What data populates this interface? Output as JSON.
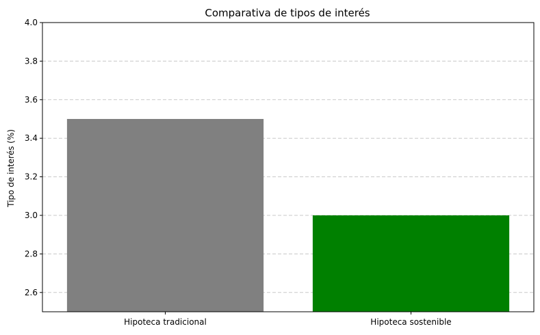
{
  "chart_data": {
    "type": "bar",
    "title": "Comparativa de tipos de interés",
    "xlabel": "",
    "ylabel": "Tipo de interés (%)",
    "categories": [
      "Hipoteca tradicional",
      "Hipoteca sostenible"
    ],
    "values": [
      3.5,
      3.0
    ],
    "colors": [
      "#808080",
      "#008000"
    ],
    "ylim": [
      2.5,
      4.0
    ],
    "yticks": [
      2.6,
      2.8,
      3.0,
      3.2,
      3.4,
      3.6,
      3.8,
      4.0
    ],
    "ytick_labels": [
      "2.6",
      "2.8",
      "3.0",
      "3.2",
      "3.4",
      "3.6",
      "3.8",
      "4.0"
    ],
    "grid": "y-dashed"
  }
}
